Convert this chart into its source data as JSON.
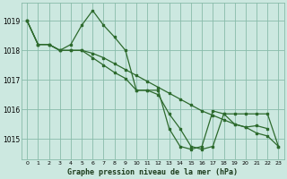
{
  "title": "Graphe pression niveau de la mer (hPa)",
  "bg_color": "#cce8e0",
  "grid_color": "#88bbaa",
  "line_color": "#2d6a2d",
  "ylim": [
    1014.3,
    1019.6
  ],
  "xlim": [
    -0.5,
    23.5
  ],
  "yticks": [
    1015,
    1016,
    1017,
    1018,
    1019
  ],
  "xticks": [
    0,
    1,
    2,
    3,
    4,
    5,
    6,
    7,
    8,
    9,
    10,
    11,
    12,
    13,
    14,
    15,
    16,
    17,
    18,
    19,
    20,
    21,
    22,
    23
  ],
  "series1_x": [
    0,
    1,
    2,
    3,
    4,
    5,
    6,
    7,
    8,
    9,
    10,
    11,
    12,
    13,
    14,
    15,
    16,
    17,
    18,
    19,
    20,
    21,
    22
  ],
  "series1_y": [
    1019.0,
    1018.2,
    1018.2,
    1018.0,
    1018.2,
    1018.85,
    1019.35,
    1018.85,
    1018.45,
    1018.0,
    1016.65,
    1016.65,
    1016.65,
    1015.35,
    1014.75,
    1014.65,
    1014.75,
    1015.95,
    1015.85,
    1015.5,
    1015.4,
    1015.45,
    1015.35
  ],
  "series2_x": [
    0,
    1,
    2,
    3,
    4,
    5,
    6,
    7,
    8,
    9,
    10,
    11,
    12,
    13,
    14,
    15,
    16,
    17,
    18,
    19,
    20,
    21,
    22,
    23
  ],
  "series2_y": [
    1019.0,
    1018.2,
    1018.2,
    1018.0,
    1018.0,
    1018.0,
    1017.9,
    1017.75,
    1017.55,
    1017.35,
    1017.15,
    1016.95,
    1016.75,
    1016.55,
    1016.35,
    1016.15,
    1015.95,
    1015.8,
    1015.65,
    1015.5,
    1015.4,
    1015.2,
    1015.1,
    1014.75
  ],
  "series3_x": [
    0,
    1,
    2,
    3,
    4,
    5,
    6,
    7,
    8,
    9,
    10,
    11,
    12,
    13,
    14,
    15,
    16,
    17,
    18,
    19,
    20,
    21,
    22,
    23
  ],
  "series3_y": [
    1019.0,
    1018.2,
    1018.2,
    1018.0,
    1018.0,
    1018.0,
    1017.75,
    1017.5,
    1017.25,
    1017.05,
    1016.65,
    1016.65,
    1016.5,
    1015.85,
    1015.35,
    1014.75,
    1014.65,
    1014.75,
    1015.85,
    1015.85,
    1015.85,
    1015.85,
    1015.85,
    1014.75
  ]
}
